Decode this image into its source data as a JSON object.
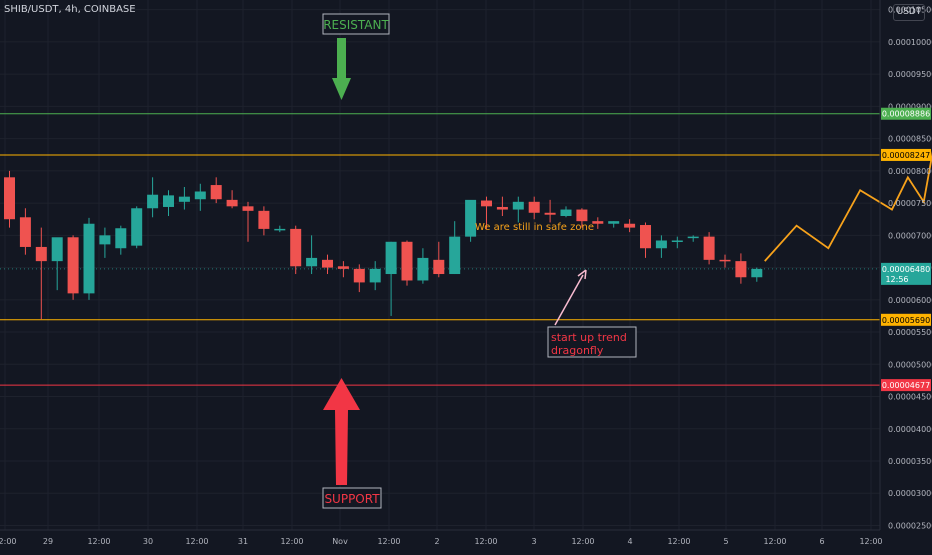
{
  "header": {
    "symbol": "SHIB/USDT, 4h, COINBASE",
    "currency": "USDT"
  },
  "colors": {
    "background": "#131722",
    "grid": "#1e222d",
    "axis_text": "#b2b5be",
    "up": "#26a69a",
    "down": "#ef5350",
    "resistant_line": "#4caf50",
    "orange_line": "#ffb300",
    "support_line": "#f23645",
    "projection": "#f7a21b",
    "pink_arrow": "#f8bbd0"
  },
  "annotations": {
    "resistant_label": "RESISTANT",
    "support_label": "SUPPORT",
    "safe_zone_text": "We are still in safe zone",
    "up_trend_line1": "start up trend",
    "up_trend_line2": "dragonfly"
  },
  "chart_data": {
    "type": "candlestick",
    "yaxis": {
      "ticks": [
        "0.00010500",
        "0.00010000",
        "0.00009500",
        "0.00009000",
        "0.00008500",
        "0.00008000",
        "0.00007500",
        "0.00007000",
        "0.00006500",
        "0.00006000",
        "0.00005500",
        "0.00005000",
        "0.00004500",
        "0.00004000",
        "0.00003500",
        "0.00003000",
        "0.00002500"
      ],
      "ylim": [
        2.43e-05,
        0.0001065
      ]
    },
    "xaxis": {
      "ticks": [
        "12:00",
        "29",
        "12:00",
        "30",
        "12:00",
        "31",
        "12:00",
        "Nov",
        "12:00",
        "2",
        "12:00",
        "3",
        "12:00",
        "4",
        "12:00",
        "5",
        "12:00",
        "6",
        "12:00"
      ]
    },
    "levels": [
      {
        "value": 8.886e-05,
        "label": "0.00008886",
        "kind": "resistant"
      },
      {
        "value": 8.247e-05,
        "label": "0.00008247",
        "kind": "upper"
      },
      {
        "value": 5.69e-05,
        "label": "0.00005690",
        "kind": "lower"
      },
      {
        "value": 4.677e-05,
        "label": "0.00004677",
        "kind": "support"
      }
    ],
    "current_price": {
      "value": 6.48e-05,
      "label": "0.00006480",
      "countdown": "12:56"
    },
    "candles": [
      [
        7.9e-05,
        8e-05,
        7.12e-05,
        7.25e-05
      ],
      [
        7.28e-05,
        7.42e-05,
        6.7e-05,
        6.82e-05
      ],
      [
        6.82e-05,
        7.12e-05,
        5.7e-05,
        6.6e-05
      ],
      [
        6.6e-05,
        6.95e-05,
        6.15e-05,
        6.97e-05
      ],
      [
        6.97e-05,
        7e-05,
        6e-05,
        6.1e-05
      ],
      [
        6.1e-05,
        7.27e-05,
        6e-05,
        7.18e-05
      ],
      [
        6.86e-05,
        7.12e-05,
        6.65e-05,
        7e-05
      ],
      [
        6.8e-05,
        7.15e-05,
        6.7e-05,
        7.11e-05
      ],
      [
        6.84e-05,
        7.45e-05,
        6.8e-05,
        7.42e-05
      ],
      [
        7.42e-05,
        7.9e-05,
        7.28e-05,
        7.63e-05
      ],
      [
        7.44e-05,
        7.7e-05,
        7.3e-05,
        7.62e-05
      ],
      [
        7.52e-05,
        7.75e-05,
        7.4e-05,
        7.6e-05
      ],
      [
        7.56e-05,
        7.8e-05,
        7.38e-05,
        7.68e-05
      ],
      [
        7.78e-05,
        7.9e-05,
        7.5e-05,
        7.56e-05
      ],
      [
        7.55e-05,
        7.7e-05,
        7.42e-05,
        7.45e-05
      ],
      [
        7.45e-05,
        7.52e-05,
        6.9e-05,
        7.38e-05
      ],
      [
        7.38e-05,
        7.45e-05,
        7e-05,
        7.1e-05
      ],
      [
        7.08e-05,
        7.15e-05,
        7.05e-05,
        7.1e-05
      ],
      [
        7.1e-05,
        7.15e-05,
        6.4e-05,
        6.52e-05
      ],
      [
        6.52e-05,
        7e-05,
        6.4e-05,
        6.65e-05
      ],
      [
        6.62e-05,
        6.7e-05,
        6.4e-05,
        6.5e-05
      ],
      [
        6.52e-05,
        6.6e-05,
        6.35e-05,
        6.48e-05
      ],
      [
        6.48e-05,
        6.55e-05,
        6.12e-05,
        6.27e-05
      ],
      [
        6.27e-05,
        6.6e-05,
        6.15e-05,
        6.48e-05
      ],
      [
        6.4e-05,
        6.9e-05,
        5.75e-05,
        6.9e-05
      ],
      [
        6.9e-05,
        6.92e-05,
        6.22e-05,
        6.3e-05
      ],
      [
        6.3e-05,
        6.8e-05,
        6.25e-05,
        6.65e-05
      ],
      [
        6.62e-05,
        6.9e-05,
        6.35e-05,
        6.4e-05
      ],
      [
        6.4e-05,
        7.22e-05,
        6.4e-05,
        6.98e-05
      ],
      [
        6.98e-05,
        7.48e-05,
        6.9e-05,
        7.55e-05
      ],
      [
        7.54e-05,
        7.6e-05,
        7.1e-05,
        7.45e-05
      ],
      [
        7.44e-05,
        7.6e-05,
        7.3e-05,
        7.4e-05
      ],
      [
        7.4e-05,
        7.6e-05,
        7.2e-05,
        7.52e-05
      ],
      [
        7.52e-05,
        7.6e-05,
        7.25e-05,
        7.35e-05
      ],
      [
        7.35e-05,
        7.55e-05,
        7.2e-05,
        7.32e-05
      ],
      [
        7.3e-05,
        7.45e-05,
        7.28e-05,
        7.4e-05
      ],
      [
        7.4e-05,
        7.42e-05,
        7.12e-05,
        7.22e-05
      ],
      [
        7.22e-05,
        7.28e-05,
        7.1e-05,
        7.18e-05
      ],
      [
        7.18e-05,
        7.22e-05,
        7.12e-05,
        7.22e-05
      ],
      [
        7.18e-05,
        7.25e-05,
        7.05e-05,
        7.12e-05
      ],
      [
        7.16e-05,
        7.2e-05,
        6.65e-05,
        6.8e-05
      ],
      [
        6.8e-05,
        7e-05,
        6.65e-05,
        6.92e-05
      ],
      [
        6.92e-05,
        6.98e-05,
        6.8e-05,
        6.92e-05
      ],
      [
        6.96e-05,
        7e-05,
        6.9e-05,
        6.98e-05
      ],
      [
        6.98e-05,
        7.05e-05,
        6.55e-05,
        6.62e-05
      ],
      [
        6.62e-05,
        6.7e-05,
        6.5e-05,
        6.6e-05
      ],
      [
        6.6e-05,
        6.72e-05,
        6.25e-05,
        6.35e-05
      ],
      [
        6.35e-05,
        6.5e-05,
        6.28e-05,
        6.48e-05
      ]
    ],
    "projection_path": [
      [
        47.5,
        6.6e-05
      ],
      [
        49.5,
        7.15e-05
      ],
      [
        51.5,
        6.8e-05
      ],
      [
        53.5,
        7.7e-05
      ],
      [
        55.5,
        7.4e-05
      ],
      [
        56.5,
        7.9e-05
      ],
      [
        57.5,
        7.52e-05
      ],
      [
        59.2,
        9.85e-05
      ]
    ]
  }
}
